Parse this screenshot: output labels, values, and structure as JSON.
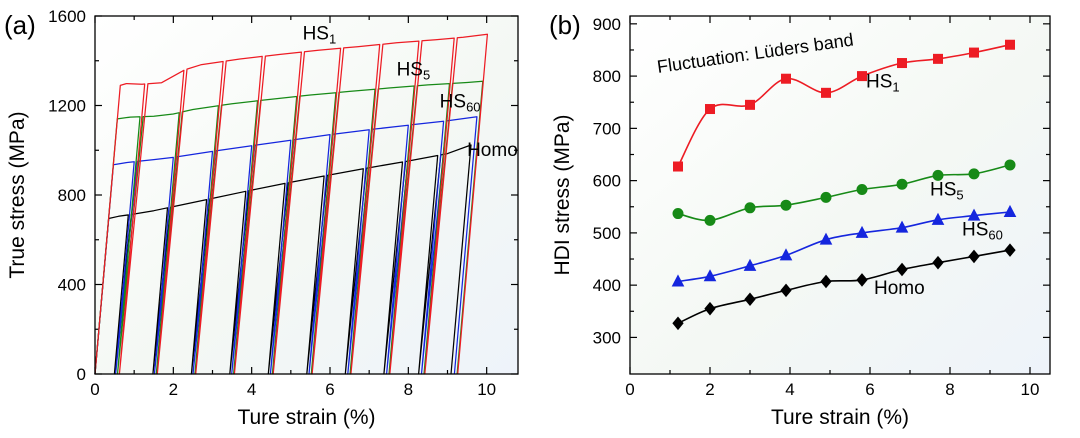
{
  "figure": {
    "background": "#ffffff",
    "accent_colors": {
      "red": "#ed1c24",
      "green": "#178a17",
      "blue": "#1526de",
      "black": "#000000"
    }
  },
  "chart_data": [
    {
      "type": "line",
      "subtype": "cyclic-load-unload",
      "panel_label": "(a)",
      "xlabel": "Ture strain (%)",
      "ylabel": "True stress (MPa)",
      "xlim": [
        0,
        10.8
      ],
      "ylim": [
        0,
        1600
      ],
      "xticks": [
        0,
        2,
        4,
        6,
        8,
        10
      ],
      "xminor": [
        1,
        3,
        5,
        7,
        9
      ],
      "yticks": [
        0,
        400,
        800,
        1200,
        1600
      ],
      "yminor": [
        200,
        600,
        1000,
        1400
      ],
      "elastic_slope": 2000,
      "cycle_strains": [
        1.15,
        2.15,
        3.15,
        4.15,
        5.15,
        6.15,
        7.15,
        8.15,
        9.05,
        9.9
      ],
      "reload_offset": 0.08,
      "series": [
        {
          "name": "Homo",
          "sub": "",
          "color": "#000000",
          "offset": -0.3,
          "envelope": [
            [
              0,
              0
            ],
            [
              0.35,
              695
            ],
            [
              0.6,
              705
            ],
            [
              1,
              715
            ],
            [
              1.5,
              730
            ],
            [
              2,
              748
            ],
            [
              3,
              785
            ],
            [
              4,
              822
            ],
            [
              5,
              857
            ],
            [
              6,
              890
            ],
            [
              7,
              922
            ],
            [
              8,
              952
            ],
            [
              9,
              985
            ],
            [
              9.7,
              1030
            ]
          ],
          "label": {
            "x": 9.5,
            "y": 975,
            "anchor": "start"
          }
        },
        {
          "name": "HS",
          "sub": "60",
          "color": "#1526de",
          "offset": -0.15,
          "envelope": [
            [
              0,
              0
            ],
            [
              0.47,
              935
            ],
            [
              0.8,
              945
            ],
            [
              1.5,
              958
            ],
            [
              2,
              968
            ],
            [
              3,
              995
            ],
            [
              4,
              1020
            ],
            [
              5,
              1045
            ],
            [
              6,
              1070
            ],
            [
              7,
              1092
            ],
            [
              8,
              1112
            ],
            [
              9,
              1132
            ],
            [
              9.85,
              1152
            ]
          ],
          "label": {
            "x": 8.8,
            "y": 1190,
            "anchor": "start"
          }
        },
        {
          "name": "HS",
          "sub": "5",
          "color": "#178a17",
          "offset": 0,
          "envelope": [
            [
              0,
              0
            ],
            [
              0.57,
              1140
            ],
            [
              0.9,
              1148
            ],
            [
              1.5,
              1152
            ],
            [
              2,
              1162
            ],
            [
              2.5,
              1182
            ],
            [
              3.5,
              1208
            ],
            [
              4.5,
              1228
            ],
            [
              5.5,
              1247
            ],
            [
              6.5,
              1263
            ],
            [
              7.5,
              1278
            ],
            [
              8.5,
              1292
            ],
            [
              9.5,
              1303
            ],
            [
              10,
              1310
            ]
          ],
          "label": {
            "x": 7.7,
            "y": 1335,
            "anchor": "start"
          }
        },
        {
          "name": "HS",
          "sub": "1",
          "color": "#ed1c24",
          "offset": 0.12,
          "envelope": [
            [
              0,
              0
            ],
            [
              0.645,
              1290
            ],
            [
              0.8,
              1298
            ],
            [
              1.2,
              1295
            ],
            [
              1.7,
              1302
            ],
            [
              2.3,
              1360
            ],
            [
              2.7,
              1382
            ],
            [
              3.7,
              1408
            ],
            [
              4.7,
              1428
            ],
            [
              5.7,
              1447
            ],
            [
              6.7,
              1463
            ],
            [
              7.7,
              1480
            ],
            [
              8.7,
              1494
            ],
            [
              9.4,
              1505
            ],
            [
              10.1,
              1520
            ]
          ],
          "label": {
            "x": 5.3,
            "y": 1495,
            "anchor": "start"
          }
        }
      ]
    },
    {
      "type": "scatter",
      "subtype": "scatter-with-line",
      "panel_label": "(b)",
      "xlabel": "Ture strain (%)",
      "ylabel": "HDI stress (MPa)",
      "xlim": [
        0,
        10.5
      ],
      "ylim": [
        230,
        915
      ],
      "xticks": [
        0,
        2,
        4,
        6,
        8,
        10
      ],
      "xminor": [
        1,
        3,
        5,
        7,
        9
      ],
      "yticks": [
        300,
        400,
        500,
        600,
        700,
        800,
        900
      ],
      "yminor": [
        350,
        450,
        550,
        650,
        750,
        850
      ],
      "x": [
        1.2,
        2.0,
        3.0,
        3.9,
        4.9,
        5.8,
        6.8,
        7.7,
        8.6,
        9.5
      ],
      "series": [
        {
          "name": "Homo",
          "sub": "",
          "color": "#000000",
          "marker": "diamond",
          "values": [
            327,
            355,
            373,
            390,
            407,
            410,
            430,
            443,
            455,
            467
          ],
          "label": {
            "x": 6.1,
            "y": 383,
            "anchor": "start"
          }
        },
        {
          "name": "HS",
          "sub": "60",
          "color": "#1526de",
          "marker": "triangle",
          "values": [
            407,
            417,
            437,
            457,
            487,
            500,
            510,
            525,
            533,
            540
          ],
          "label": {
            "x": 8.3,
            "y": 495,
            "anchor": "start"
          }
        },
        {
          "name": "HS",
          "sub": "5",
          "color": "#178a17",
          "marker": "circle",
          "values": [
            537,
            524,
            548,
            553,
            568,
            583,
            593,
            610,
            613,
            630
          ],
          "label": {
            "x": 7.5,
            "y": 572,
            "anchor": "start"
          }
        },
        {
          "name": "HS",
          "sub": "1",
          "color": "#ed1c24",
          "marker": "square",
          "values": [
            627,
            737,
            745,
            795,
            768,
            800,
            825,
            833,
            845,
            860
          ],
          "label": {
            "x": 5.9,
            "y": 778,
            "anchor": "start"
          }
        }
      ],
      "annotation": {
        "text": "Fluctuation: Lüders band",
        "color": "#ed1c24",
        "x": 0.7,
        "y": 806,
        "rotation": -8
      }
    }
  ]
}
